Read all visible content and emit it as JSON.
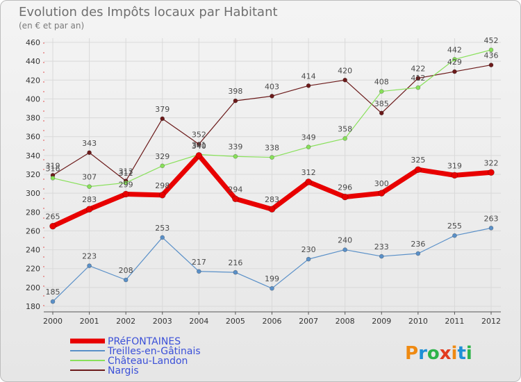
{
  "chart_data": {
    "type": "line",
    "title": "Evolution des Impôts locaux par Habitant",
    "subtitle": "(en € et par an)",
    "x": [
      "2000",
      "2001",
      "2002",
      "2003",
      "2004",
      "2005",
      "2006",
      "2007",
      "2008",
      "2009",
      "2010",
      "2011",
      "2012"
    ],
    "y_ticks": [
      180,
      200,
      220,
      240,
      260,
      280,
      300,
      320,
      340,
      360,
      380,
      400,
      420,
      440,
      460
    ],
    "ylim": [
      180,
      460
    ],
    "grid": "horizontal",
    "legend_position": "bottom-left",
    "series": [
      {
        "name": "Nargis",
        "color": "#6b1a1a",
        "width": 1.2,
        "values": [
          319,
          343,
          313,
          379,
          352,
          398,
          403,
          414,
          420,
          385,
          422,
          429,
          436
        ],
        "labels": [
          "319",
          "343",
          "313",
          "379",
          "352",
          "398",
          "403",
          "414",
          "420",
          "385",
          "422",
          "429",
          "436"
        ]
      },
      {
        "name": "Château-Landon",
        "color": "#88e05a",
        "width": 1.2,
        "values": [
          316,
          307,
          311,
          329,
          341,
          339,
          338,
          349,
          358,
          408,
          412,
          442,
          452
        ],
        "labels": [
          "316",
          "307",
          "311",
          "329",
          "341",
          "339",
          "338",
          "349",
          "358",
          "408",
          "412",
          "442",
          "452"
        ]
      },
      {
        "name": "Treilles-en-Gâtinais",
        "color": "#5a90c8",
        "width": 1.2,
        "values": [
          185,
          223,
          208,
          253,
          217,
          216,
          199,
          230,
          240,
          233,
          236,
          255,
          263
        ],
        "labels": [
          "185",
          "223",
          "208",
          "253",
          "217",
          "216",
          "199",
          "230",
          "240",
          "233",
          "236",
          "255",
          "263"
        ]
      },
      {
        "name": "PRéFONTAINES",
        "color": "#e80000",
        "width": 7,
        "values": [
          265,
          283,
          299,
          298,
          340,
          294,
          283,
          312,
          296,
          300,
          325,
          319,
          322
        ],
        "labels": [
          "265",
          "283",
          "299",
          "298",
          "340",
          "294",
          "283",
          "312",
          "296",
          "300",
          "325",
          "319",
          "322"
        ]
      }
    ]
  },
  "legend": [
    "PRéFONTAINES",
    "Treilles-en-Gâtinais",
    "Château-Landon",
    "Nargis"
  ],
  "branding": {
    "logo_text": "Proxiti",
    "letters": [
      "P",
      "r",
      "o",
      "x",
      "i",
      "t",
      "i"
    ],
    "letter_colors": [
      "#ef8a12",
      "#1e90d6",
      "#2db34a",
      "#e23b1e",
      "#ef8a12",
      "#1e90d6",
      "#2db34a"
    ]
  }
}
